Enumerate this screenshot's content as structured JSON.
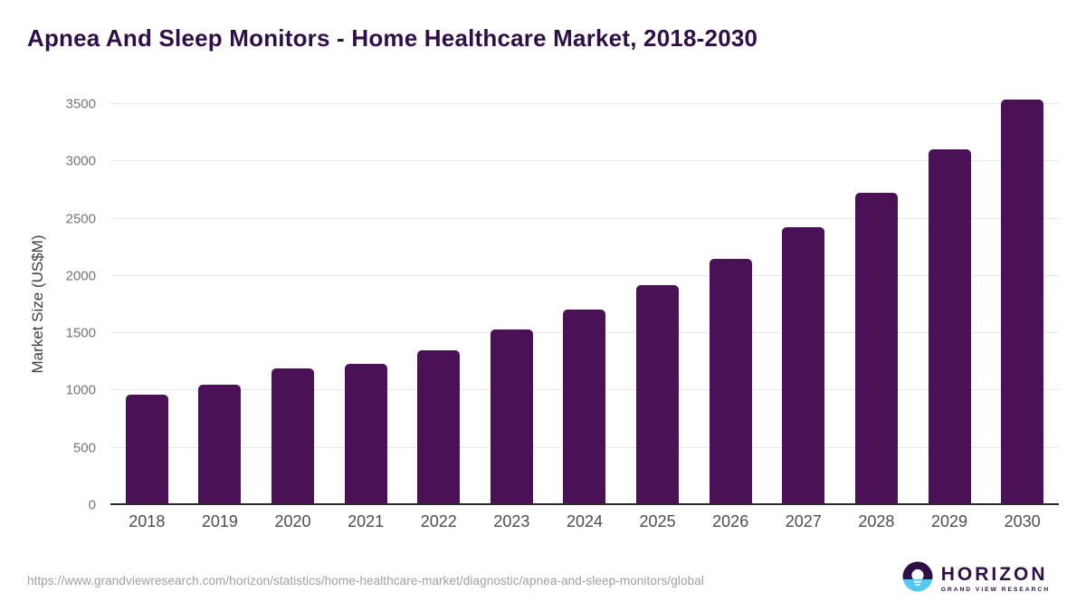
{
  "title": "Apnea And Sleep Monitors - Home Healthcare Market, 2018-2030",
  "chart_data": {
    "type": "bar",
    "title": "Apnea And Sleep Monitors - Home Healthcare Market, 2018-2030",
    "categories": [
      "2018",
      "2019",
      "2020",
      "2021",
      "2022",
      "2023",
      "2024",
      "2025",
      "2026",
      "2027",
      "2028",
      "2029",
      "2030"
    ],
    "values": [
      950,
      1040,
      1185,
      1225,
      1340,
      1520,
      1700,
      1910,
      2145,
      2420,
      2725,
      3100,
      3540
    ],
    "xlabel": "",
    "ylabel": "Market Size (US$M)",
    "ylim": [
      0,
      3500
    ],
    "ytick_step": 500,
    "yticks": [
      0,
      500,
      1000,
      1500,
      2000,
      2500,
      3000,
      3500
    ],
    "grid": "horizontal",
    "legend": "none"
  },
  "colors": {
    "bar": "#4a1157",
    "title": "#2e1045",
    "y_tick_label": "#757575",
    "x_tick_label": "#4d4d4d",
    "gridline": "#e7e7e7",
    "axis_line": "#2b2b2b",
    "logo_dark": "#2e1045",
    "logo_blue": "#56c7f0"
  },
  "footer": {
    "source_url": "https://www.grandviewresearch.com/horizon/statistics/home-healthcare-market/diagnostic/apnea-and-sleep-monitors/global",
    "logo": {
      "name": "HORIZON",
      "subtitle": "GRAND VIEW RESEARCH",
      "icon": "horizon-sun-over-water-icon"
    }
  }
}
